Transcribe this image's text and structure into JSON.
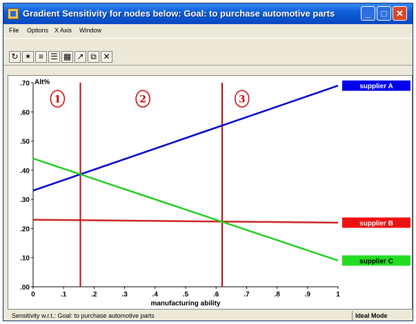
{
  "window": {
    "title": "Gradient Sensitivity for nodes below: Goal: to purchase automotive parts"
  },
  "menu": [
    "File",
    "Options",
    "X Axis",
    "Window"
  ],
  "toolbar": [
    {
      "name": "refresh-icon",
      "glyph": "↻"
    },
    {
      "name": "chart-icon",
      "glyph": "✶"
    },
    {
      "name": "sort-icon",
      "glyph": "≡"
    },
    {
      "name": "sort-alt-icon",
      "glyph": "☰"
    },
    {
      "name": "table-icon",
      "glyph": "▦"
    },
    {
      "name": "arrow-icon",
      "glyph": "↗"
    },
    {
      "name": "copy-icon",
      "glyph": "⧉"
    },
    {
      "name": "close-x-icon",
      "glyph": "✕"
    }
  ],
  "status": {
    "left": "Sensitivity w.r.t.: Goal: to purchase automotive parts",
    "right": "Ideal Mode"
  },
  "chart_data": {
    "type": "line",
    "ylabel": "Alt%",
    "xlabel": "manufacturing ability",
    "xlim": [
      0,
      1
    ],
    "ylim": [
      0,
      0.7
    ],
    "x_ticks": [
      "0",
      ".1",
      ".2",
      ".3",
      ".4",
      ".5",
      ".6",
      ".7",
      ".8",
      ".9",
      "1"
    ],
    "y_ticks": [
      ".00",
      ".10",
      ".20",
      ".30",
      ".40",
      ".50",
      ".60",
      ".70"
    ],
    "grid": false,
    "legend": "right",
    "series": [
      {
        "name": "supplier A",
        "color": "#0000cc",
        "legend_bg": "#0000ee",
        "legend_fg": "#ffffff",
        "x": [
          0,
          1
        ],
        "y": [
          0.33,
          0.69
        ]
      },
      {
        "name": "supplier B",
        "color": "#cc2222",
        "legend_bg": "#ee1111",
        "legend_fg": "#ffffff",
        "x": [
          0,
          1
        ],
        "y": [
          0.23,
          0.22
        ]
      },
      {
        "name": "supplier C",
        "color": "#22cc22",
        "legend_bg": "#22dd22",
        "legend_fg": "#000000",
        "x": [
          0,
          1
        ],
        "y": [
          0.44,
          0.09
        ]
      }
    ],
    "vertical_lines": [
      0.155,
      0.62
    ],
    "regions": [
      {
        "label": "1",
        "x": 0.08,
        "y": 0.645
      },
      {
        "label": "2",
        "x": 0.36,
        "y": 0.645
      },
      {
        "label": "3",
        "x": 0.685,
        "y": 0.645
      }
    ]
  }
}
